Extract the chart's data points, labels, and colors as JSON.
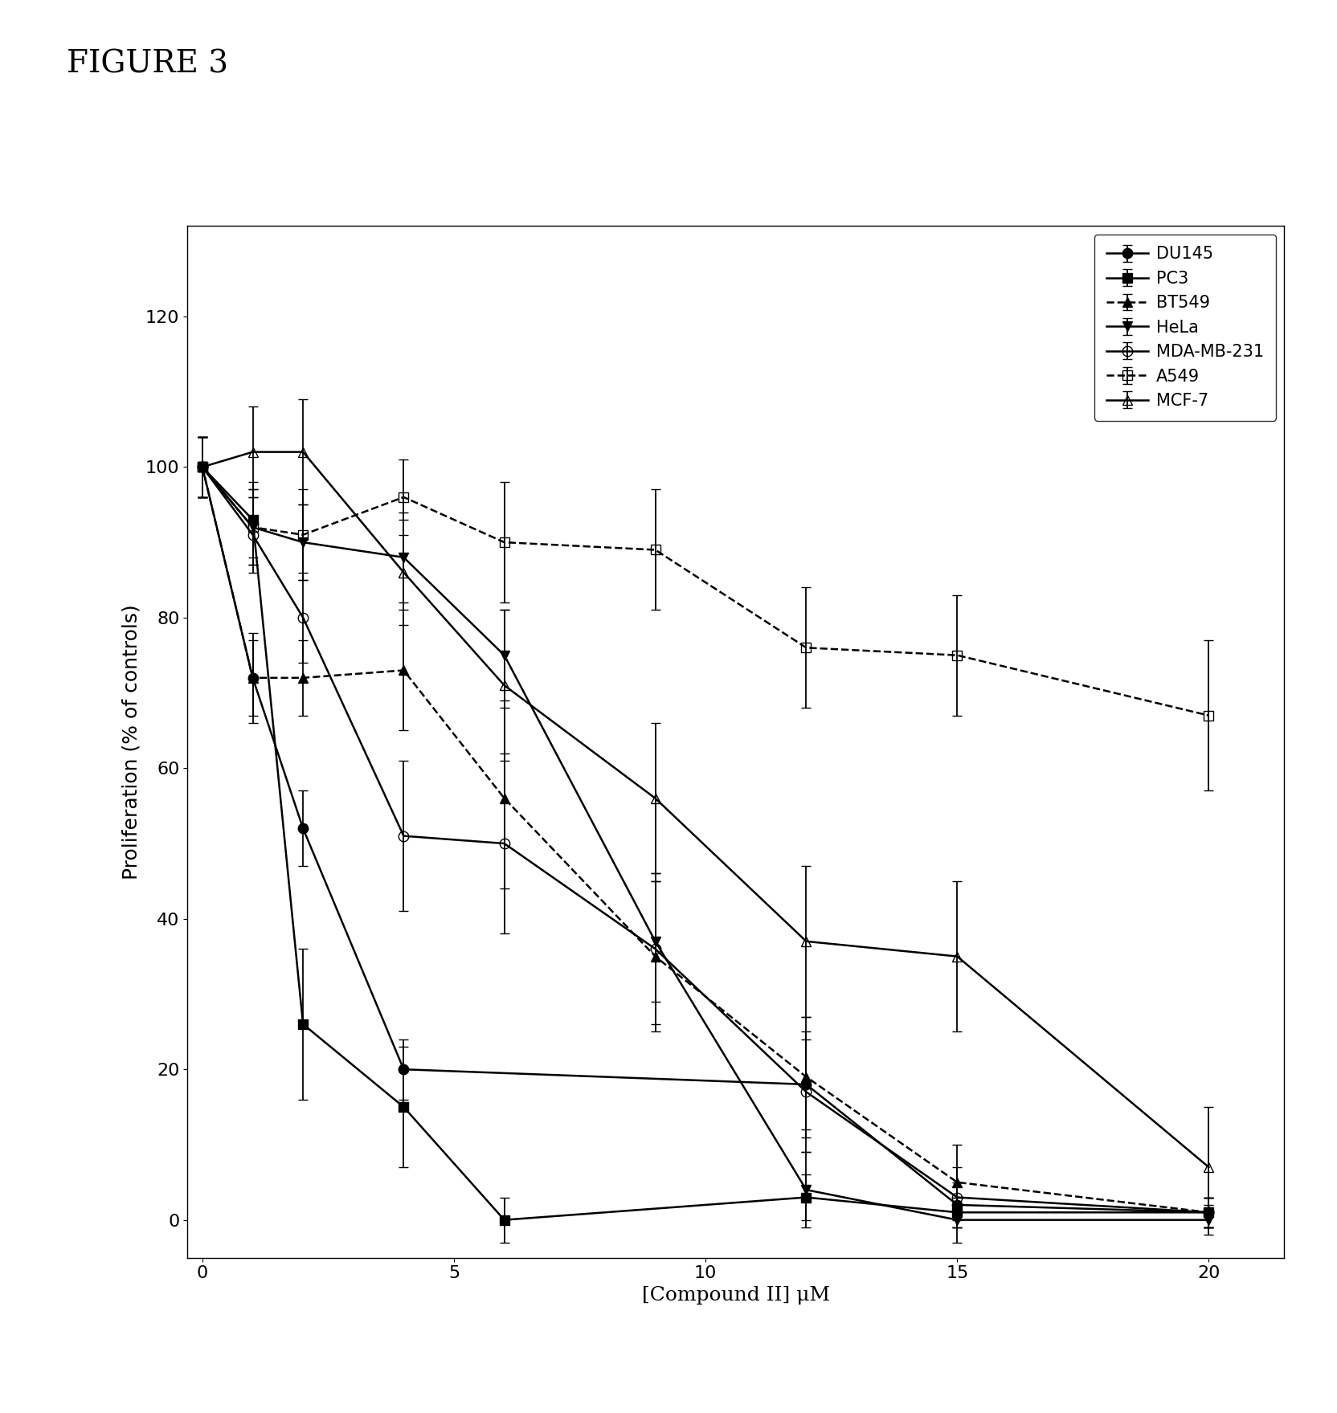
{
  "figure_title": "FIGURE 3",
  "xlabel": "[Compound II] μM",
  "ylabel": "Proliferation (% of controls)",
  "xlim": [
    -0.3,
    21.5
  ],
  "ylim": [
    -5,
    132
  ],
  "xticks": [
    0,
    5,
    10,
    15,
    20
  ],
  "yticks": [
    0,
    20,
    40,
    60,
    80,
    100,
    120
  ],
  "series": [
    {
      "label": "DU145",
      "x": [
        0,
        1,
        2,
        4,
        12,
        15,
        20
      ],
      "y": [
        100,
        72,
        52,
        20,
        18,
        2,
        1
      ],
      "yerr": [
        4,
        6,
        5,
        4,
        6,
        3,
        2
      ],
      "marker": "o",
      "fillstyle": "full",
      "linestyle": "-",
      "color": "#000000"
    },
    {
      "label": "PC3",
      "x": [
        0,
        1,
        2,
        4,
        6,
        12,
        15,
        20
      ],
      "y": [
        100,
        93,
        26,
        15,
        0,
        3,
        1,
        1
      ],
      "yerr": [
        4,
        5,
        10,
        8,
        3,
        3,
        2,
        2
      ],
      "marker": "s",
      "fillstyle": "full",
      "linestyle": "-",
      "color": "#000000"
    },
    {
      "label": "BT549",
      "x": [
        0,
        1,
        2,
        4,
        6,
        9,
        12,
        15,
        20
      ],
      "y": [
        100,
        72,
        72,
        73,
        56,
        35,
        19,
        5,
        1
      ],
      "yerr": [
        4,
        5,
        5,
        8,
        12,
        10,
        8,
        5,
        2
      ],
      "marker": "^",
      "fillstyle": "full",
      "linestyle": "--",
      "color": "#000000"
    },
    {
      "label": "HeLa",
      "x": [
        0,
        1,
        2,
        4,
        6,
        9,
        12,
        15,
        20
      ],
      "y": [
        100,
        92,
        90,
        88,
        75,
        37,
        4,
        0,
        0
      ],
      "yerr": [
        4,
        5,
        5,
        6,
        6,
        8,
        5,
        3,
        2
      ],
      "marker": "v",
      "fillstyle": "full",
      "linestyle": "-",
      "color": "#000000"
    },
    {
      "label": "MDA-MB-231",
      "x": [
        0,
        1,
        2,
        4,
        6,
        9,
        12,
        15,
        20
      ],
      "y": [
        100,
        91,
        80,
        51,
        50,
        36,
        17,
        3,
        1
      ],
      "yerr": [
        4,
        5,
        6,
        10,
        12,
        10,
        8,
        4,
        2
      ],
      "marker": "o",
      "fillstyle": "none",
      "linestyle": "-",
      "color": "#000000"
    },
    {
      "label": "A549",
      "x": [
        0,
        1,
        2,
        4,
        6,
        9,
        12,
        15,
        20
      ],
      "y": [
        100,
        92,
        91,
        96,
        90,
        89,
        76,
        75,
        67
      ],
      "yerr": [
        4,
        5,
        6,
        5,
        8,
        8,
        8,
        8,
        10
      ],
      "marker": "s",
      "fillstyle": "none",
      "linestyle": "--",
      "color": "#000000"
    },
    {
      "label": "MCF-7",
      "x": [
        0,
        1,
        2,
        4,
        6,
        9,
        12,
        15,
        20
      ],
      "y": [
        100,
        102,
        102,
        86,
        71,
        56,
        37,
        35,
        7
      ],
      "yerr": [
        4,
        6,
        7,
        7,
        10,
        10,
        10,
        10,
        8
      ],
      "marker": "^",
      "fillstyle": "none",
      "linestyle": "-",
      "color": "#000000"
    }
  ],
  "background_color": "#ffffff",
  "title_fontsize": 28,
  "axis_label_fontsize": 18,
  "tick_fontsize": 16,
  "legend_fontsize": 15,
  "marker_size": 9,
  "linewidth": 1.8,
  "capsize": 4,
  "elinewidth": 1.3
}
